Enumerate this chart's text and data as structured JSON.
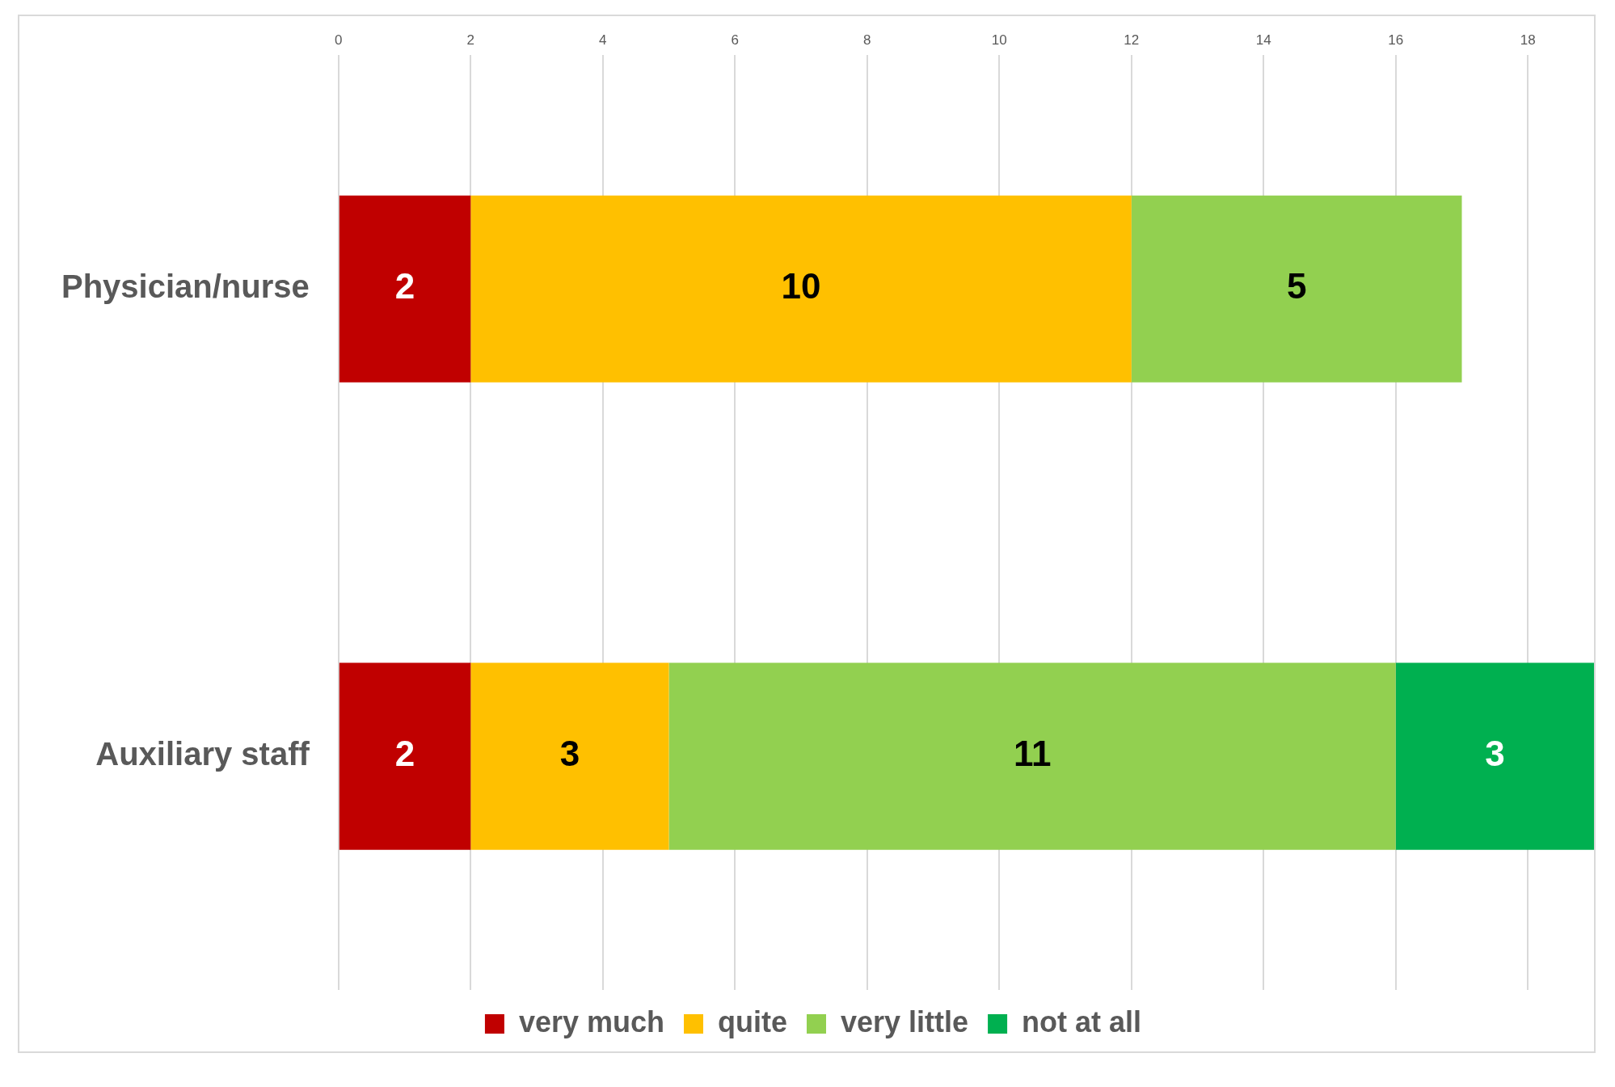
{
  "chart_data": {
    "type": "bar",
    "orientation": "horizontal",
    "stacked": true,
    "categories": [
      "Physician/nurse",
      "Auxiliary staff"
    ],
    "series": [
      {
        "name": "very much",
        "color": "#c00000",
        "values": [
          2,
          2
        ]
      },
      {
        "name": "quite",
        "color": "#ffc000",
        "values": [
          10,
          3
        ]
      },
      {
        "name": "very little",
        "color": "#92d050",
        "values": [
          5,
          11
        ]
      },
      {
        "name": "not at all",
        "color": "#00b050",
        "values": [
          null,
          3
        ]
      }
    ],
    "xlim": [
      0,
      19
    ],
    "xticks": [
      0,
      2,
      4,
      6,
      8,
      10,
      12,
      14,
      16,
      18
    ],
    "grid": "x",
    "legend": "bottom",
    "data_labels": true
  }
}
